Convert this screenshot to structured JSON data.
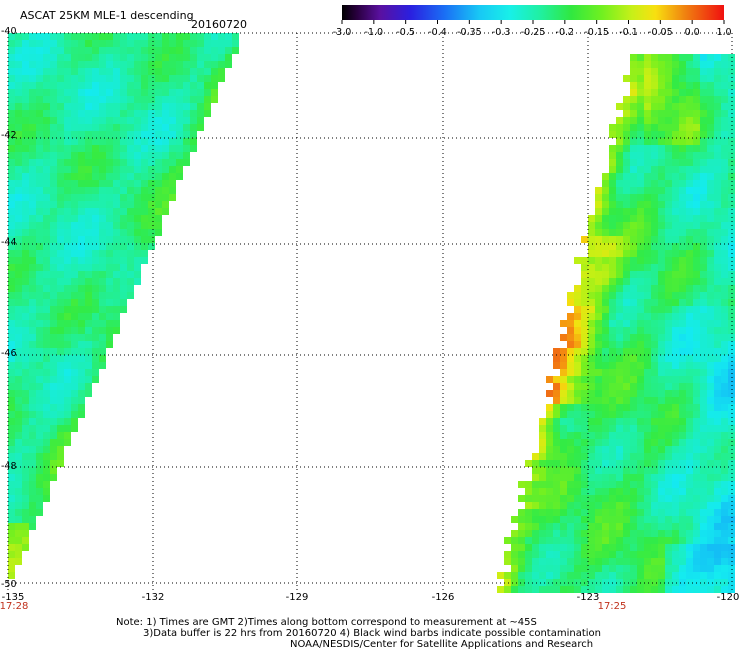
{
  "header": {
    "title": "ASCAT 25KM MLE-1 descending",
    "date": "20160720"
  },
  "colorbar": {
    "labels": [
      "-3.0",
      "-1.0",
      "-0.5",
      "-0.4",
      "-0.35",
      "-0.3",
      "-0.25",
      "-0.2",
      "-0.15",
      "-0.1",
      "-0.05",
      "0.0",
      "1.0"
    ],
    "colors": [
      "#1a0010",
      "#4a0a8a",
      "#2020e0",
      "#1a6af0",
      "#1aaaf5",
      "#16e4f0",
      "#20f0b0",
      "#30ea50",
      "#6ef020",
      "#c8f018",
      "#f0d010",
      "#f07810",
      "#f01010"
    ]
  },
  "axes": {
    "lat_labels": [
      "-40",
      "-42",
      "-44",
      "-46",
      "-48",
      "-50"
    ],
    "lon_labels": [
      "-135",
      "-132",
      "-129",
      "-126",
      "-123",
      "-120"
    ]
  },
  "time_labels": {
    "left": "17:28",
    "right": "17:25"
  },
  "notes": {
    "line1": "Note: 1) Times are GMT 2)Times along bottom correspond to measurement at ~45S",
    "line2": "3)Data buffer is 22 hrs from 20160720 4) Black wind barbs indicate possible contamination",
    "line3": "NOAA/NESDIS/Center for Satellite Applications and Research"
  }
}
